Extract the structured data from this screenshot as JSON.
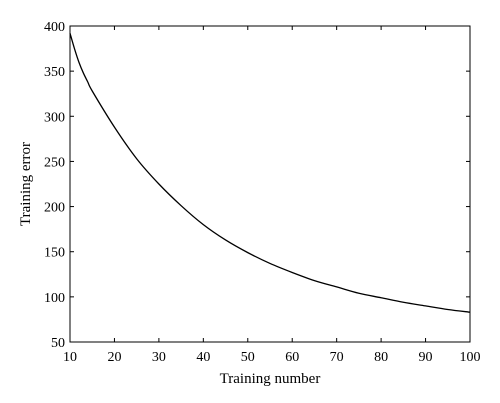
{
  "chart_data": {
    "type": "line",
    "title": "",
    "xlabel": "Training number",
    "ylabel": "Training error",
    "xlim": [
      10,
      100
    ],
    "ylim": [
      50,
      400
    ],
    "xticks": [
      10,
      20,
      30,
      40,
      50,
      60,
      70,
      80,
      90,
      100
    ],
    "yticks": [
      50,
      100,
      150,
      200,
      250,
      300,
      350,
      400
    ],
    "grid": false,
    "legend": "none",
    "line_color": "#000000",
    "series": [
      {
        "x": [
          10,
          11,
          12,
          13,
          14,
          15,
          20,
          25,
          30,
          35,
          40,
          45,
          50,
          55,
          60,
          65,
          70,
          75,
          80,
          85,
          90,
          95,
          100
        ],
        "y": [
          392,
          375,
          360,
          348,
          338,
          328,
          288,
          253,
          225,
          201,
          180,
          163,
          149,
          137,
          127,
          118,
          111,
          104,
          99,
          94,
          90,
          86,
          83
        ]
      }
    ]
  }
}
